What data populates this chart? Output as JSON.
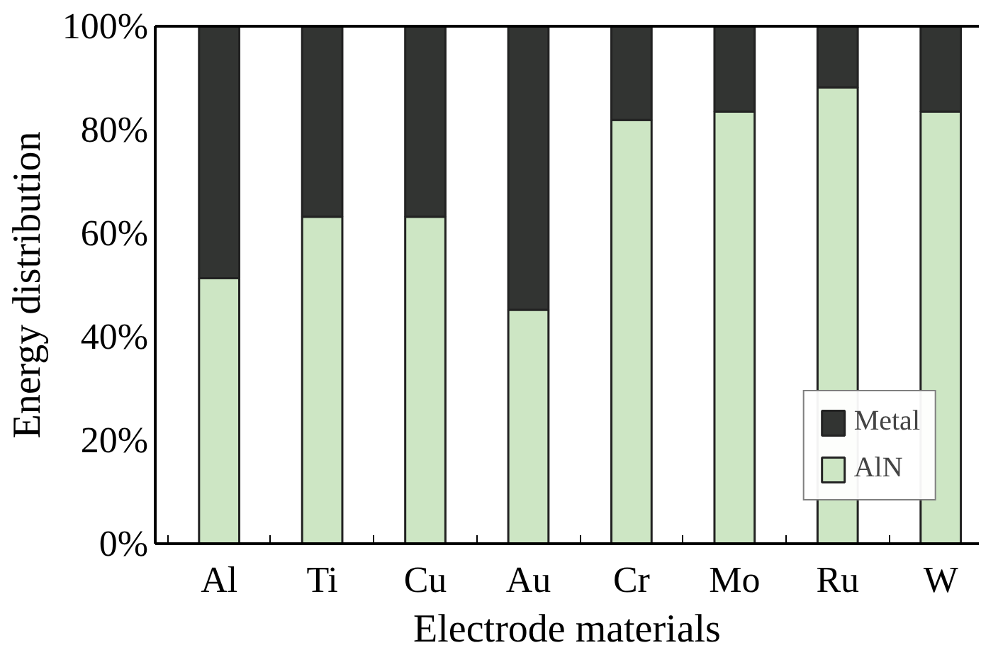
{
  "chart_data": {
    "type": "bar",
    "stacked": true,
    "xlabel": "Electrode materials",
    "ylabel": "Energy distribution",
    "categories": [
      "Al",
      "Ti",
      "Cu",
      "Au",
      "Cr",
      "Mo",
      "Ru",
      "W"
    ],
    "series": [
      {
        "name": "AlN",
        "color": "#cde6c4",
        "values": [
          51.3,
          63.2,
          63.2,
          45.2,
          81.9,
          83.5,
          88.2,
          83.5
        ]
      },
      {
        "name": "Metal",
        "color": "#323432",
        "values": [
          48.7,
          36.8,
          36.8,
          54.8,
          18.1,
          16.5,
          11.8,
          16.5
        ]
      }
    ],
    "ylim": [
      0,
      100
    ],
    "yticks": [
      {
        "value": 0,
        "label": "0%"
      },
      {
        "value": 20,
        "label": "20%"
      },
      {
        "value": 40,
        "label": "40%"
      },
      {
        "value": 60,
        "label": "60%"
      },
      {
        "value": 80,
        "label": "80%"
      },
      {
        "value": 100,
        "label": "100%"
      }
    ],
    "grid": false,
    "legend": "bottom right"
  }
}
